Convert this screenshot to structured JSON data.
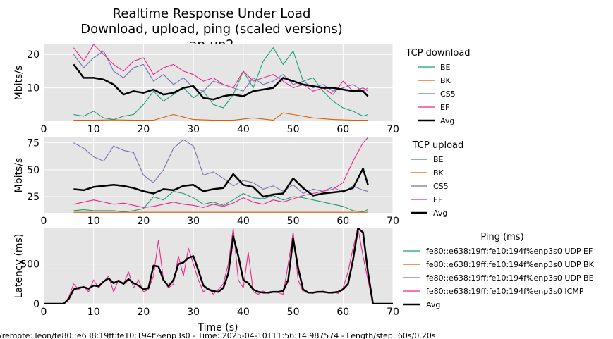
{
  "title_lines": [
    "Realtime Response Under Load",
    "Download, upload, ping (scaled versions)",
    "ap-up2"
  ],
  "footer": "l/remote: leon/fe80::e638:19ff:fe10:194f%enp3s0 - Time: 2025-04-10T11:56:14.987574 - Length/step: 60s/0.20s",
  "colors": {
    "BE": "#1b9e77",
    "BK": "#d95f02",
    "CS5": "#7570b3",
    "EF": "#e7298a",
    "Avg": "#000000",
    "panel_bg": "#e5e5e5",
    "grid": "#ffffff"
  },
  "chart_data": [
    {
      "type": "line",
      "ylabel": "Mbits/s",
      "xlim": [
        0,
        70
      ],
      "ylim": [
        0,
        23
      ],
      "xticks": [
        "0",
        "10",
        "20",
        "30",
        "40",
        "50",
        "60",
        "70"
      ],
      "yticks": [
        "10",
        "20"
      ],
      "legend_title": "TCP download",
      "legend": [
        "BE",
        "BK",
        "CS5",
        "EF",
        "Avg"
      ],
      "series": [
        {
          "name": "BE",
          "x": [
            6,
            8,
            10,
            12,
            14,
            16,
            18,
            20,
            22,
            24,
            26,
            28,
            30,
            32,
            34,
            36,
            38,
            40,
            42,
            44,
            46,
            48,
            50,
            52,
            54,
            56,
            58,
            60,
            62,
            64,
            65
          ],
          "y": [
            2,
            1.5,
            3,
            1,
            0.5,
            1.5,
            2,
            5,
            9,
            6,
            8,
            10,
            7,
            9,
            5,
            4,
            8,
            15,
            10,
            18,
            22,
            17,
            21,
            12,
            13,
            9,
            6,
            4,
            3,
            1.5,
            2
          ]
        },
        {
          "name": "BK",
          "x": [
            6,
            10,
            14,
            18,
            22,
            26,
            30,
            34,
            38,
            42,
            46,
            48,
            50,
            54,
            58,
            62,
            65
          ],
          "y": [
            0.3,
            0.3,
            0.4,
            0.3,
            0.3,
            2,
            0.5,
            0.3,
            0.3,
            1,
            0.3,
            2.5,
            2,
            1,
            0.5,
            0.3,
            0.3
          ]
        },
        {
          "name": "CS5",
          "x": [
            6,
            8,
            10,
            12,
            14,
            16,
            18,
            20,
            22,
            24,
            26,
            28,
            30,
            32,
            34,
            36,
            38,
            40,
            42,
            44,
            46,
            48,
            50,
            52,
            54,
            56,
            58,
            60,
            62,
            64,
            65
          ],
          "y": [
            20,
            16,
            19,
            21,
            15,
            13,
            16,
            17,
            12,
            14,
            11,
            13,
            10,
            9,
            12,
            11,
            10,
            9,
            13,
            11,
            12,
            14,
            11,
            12,
            10,
            11,
            9,
            10,
            11,
            9,
            10
          ]
        },
        {
          "name": "EF",
          "x": [
            6,
            8,
            10,
            12,
            14,
            16,
            18,
            20,
            22,
            24,
            26,
            28,
            30,
            32,
            34,
            36,
            38,
            40,
            42,
            44,
            46,
            48,
            50,
            52,
            54,
            56,
            58,
            60,
            62,
            64,
            65
          ],
          "y": [
            22,
            18,
            23,
            20,
            17,
            15,
            18,
            19,
            14,
            16,
            17,
            15,
            14,
            12,
            13,
            11,
            10,
            15,
            12,
            13,
            14,
            12,
            10,
            11,
            9,
            10,
            8,
            12,
            9,
            10,
            9
          ]
        },
        {
          "name": "Avg",
          "x": [
            6,
            8,
            10,
            12,
            14,
            16,
            18,
            20,
            22,
            24,
            26,
            28,
            30,
            32,
            34,
            36,
            38,
            40,
            42,
            44,
            46,
            48,
            50,
            52,
            54,
            56,
            58,
            60,
            62,
            64,
            65
          ],
          "y": [
            17,
            13,
            13,
            12.5,
            11,
            8,
            9,
            8.5,
            9.5,
            8,
            8.5,
            10,
            10.5,
            7,
            6.5,
            7.5,
            8,
            7.5,
            9,
            9.5,
            10,
            13,
            12,
            11,
            10.5,
            10,
            10,
            9.5,
            9,
            9,
            7.5
          ]
        }
      ]
    },
    {
      "type": "line",
      "ylabel": "Mbits/s",
      "xlim": [
        0,
        70
      ],
      "ylim": [
        10,
        80
      ],
      "xticks": [
        "0",
        "10",
        "20",
        "30",
        "40",
        "50",
        "60",
        "70"
      ],
      "yticks": [
        "25",
        "50",
        "75"
      ],
      "legend_title": "TCP upload",
      "legend": [
        "BE",
        "BK",
        "CS5",
        "EF",
        "Avg"
      ],
      "series": [
        {
          "name": "BE",
          "x": [
            6,
            8,
            10,
            12,
            14,
            16,
            18,
            20,
            22,
            24,
            26,
            28,
            30,
            32,
            34,
            36,
            38,
            40,
            42,
            44,
            46,
            48,
            50,
            52,
            54,
            56,
            58,
            60,
            62,
            64,
            65
          ],
          "y": [
            12,
            13,
            12,
            12,
            12,
            11,
            12,
            14,
            25,
            22,
            30,
            28,
            24,
            18,
            20,
            17,
            22,
            28,
            24,
            23,
            26,
            22,
            25,
            24,
            22,
            20,
            18,
            16,
            12,
            11,
            13
          ]
        },
        {
          "name": "BK",
          "x": [
            6,
            10,
            14,
            18,
            22,
            26,
            30,
            34,
            38,
            42,
            46,
            50,
            54,
            58,
            62,
            65
          ],
          "y": [
            10.5,
            10.5,
            10.5,
            10.5,
            10.5,
            10.5,
            10.5,
            10.5,
            10.5,
            10.5,
            10.5,
            10.5,
            10.5,
            10.5,
            10.5,
            10.5
          ]
        },
        {
          "name": "CS5",
          "x": [
            6,
            8,
            10,
            12,
            14,
            16,
            18,
            20,
            22,
            24,
            26,
            28,
            30,
            32,
            34,
            36,
            38,
            40,
            42,
            44,
            46,
            48,
            50,
            52,
            54,
            56,
            58,
            60,
            62,
            64,
            65
          ],
          "y": [
            75,
            70,
            62,
            58,
            72,
            68,
            66,
            45,
            38,
            50,
            70,
            78,
            72,
            45,
            48,
            42,
            35,
            40,
            38,
            32,
            35,
            30,
            36,
            28,
            32,
            30,
            34,
            29,
            35,
            31,
            30
          ]
        },
        {
          "name": "EF",
          "x": [
            6,
            8,
            10,
            12,
            14,
            16,
            18,
            20,
            22,
            24,
            26,
            28,
            30,
            32,
            34,
            36,
            38,
            40,
            42,
            44,
            46,
            48,
            50,
            52,
            54,
            56,
            58,
            60,
            62,
            64,
            65
          ],
          "y": [
            18,
            20,
            22,
            20,
            18,
            19,
            17,
            15,
            16,
            18,
            20,
            18,
            17,
            15,
            18,
            16,
            19,
            24,
            20,
            18,
            22,
            20,
            23,
            26,
            28,
            30,
            32,
            38,
            58,
            75,
            80
          ]
        },
        {
          "name": "Avg",
          "x": [
            6,
            8,
            10,
            12,
            14,
            16,
            18,
            20,
            22,
            24,
            26,
            28,
            30,
            32,
            34,
            36,
            38,
            40,
            42,
            44,
            46,
            48,
            50,
            52,
            54,
            56,
            58,
            60,
            62,
            64,
            65
          ],
          "y": [
            32,
            31,
            34,
            35,
            36,
            35,
            33,
            30,
            28,
            32,
            31,
            35,
            36,
            30,
            32,
            33,
            46,
            36,
            34,
            25,
            27,
            28,
            42,
            33,
            26,
            28,
            29,
            30,
            33,
            51,
            36
          ]
        }
      ]
    },
    {
      "type": "line",
      "xlabel": "Time (s)",
      "ylabel": "Latency (ms)",
      "xlim": [
        0,
        70
      ],
      "ylim": [
        0,
        950
      ],
      "xticks": [
        "0",
        "10",
        "20",
        "30",
        "40",
        "50",
        "60",
        "70"
      ],
      "yticks": [
        "0",
        "500"
      ],
      "legend_title": "Ping (ms)",
      "legend": [
        "fe80::e638:19ff:fe10:194f%enp3s0 UDP EF",
        "fe80::e638:19ff:fe10:194f%enp3s0 UDP BK",
        "fe80::e638:19ff:fe10:194f%enp3s0 UDP BE",
        "fe80::e638:19ff:fe10:194f%enp3s0 ICMP",
        "Avg"
      ],
      "series": [
        {
          "name": "ICMP",
          "x": [
            0,
            4,
            5,
            6,
            7,
            8,
            9,
            10,
            11,
            12,
            13,
            14,
            15,
            16,
            17,
            18,
            19,
            20,
            21,
            22,
            23,
            24,
            25,
            26,
            27,
            28,
            29,
            30,
            31,
            32,
            33,
            34,
            35,
            36,
            37,
            38,
            39,
            40,
            41,
            42,
            43,
            44,
            45,
            46,
            47,
            48,
            49,
            50,
            51,
            52,
            53,
            54,
            55,
            56,
            57,
            58,
            59,
            60,
            61,
            62,
            63,
            64,
            65,
            66,
            67,
            70
          ],
          "y": [
            0,
            0,
            80,
            250,
            180,
            220,
            150,
            300,
            200,
            280,
            350,
            150,
            300,
            250,
            400,
            200,
            300,
            150,
            180,
            350,
            800,
            300,
            200,
            250,
            600,
            350,
            700,
            500,
            300,
            150,
            200,
            120,
            180,
            250,
            500,
            950,
            300,
            200,
            650,
            150,
            120,
            160,
            130,
            150,
            140,
            120,
            500,
            900,
            300,
            150,
            140,
            130,
            150,
            160,
            140,
            150,
            130,
            200,
            400,
            700,
            950,
            600,
            300,
            0,
            0,
            0
          ]
        },
        {
          "name": "Avg",
          "x": [
            0,
            4,
            5,
            6,
            7,
            8,
            9,
            10,
            11,
            12,
            13,
            14,
            15,
            16,
            17,
            18,
            19,
            20,
            21,
            22,
            23,
            24,
            25,
            26,
            27,
            28,
            29,
            30,
            31,
            32,
            33,
            34,
            35,
            36,
            37,
            38,
            39,
            40,
            41,
            42,
            43,
            44,
            45,
            46,
            47,
            48,
            49,
            50,
            51,
            52,
            53,
            54,
            55,
            56,
            57,
            58,
            59,
            60,
            61,
            62,
            63,
            64,
            65,
            66,
            67,
            70
          ],
          "y": [
            0,
            0,
            60,
            180,
            200,
            210,
            190,
            230,
            220,
            280,
            320,
            260,
            290,
            250,
            310,
            260,
            230,
            180,
            200,
            480,
            470,
            300,
            220,
            300,
            500,
            520,
            580,
            600,
            420,
            230,
            180,
            160,
            150,
            200,
            380,
            850,
            600,
            300,
            260,
            180,
            150,
            140,
            140,
            150,
            150,
            160,
            300,
            820,
            450,
            180,
            140,
            140,
            150,
            150,
            140,
            140,
            150,
            180,
            250,
            550,
            950,
            900,
            400,
            0,
            0,
            0
          ]
        }
      ]
    }
  ]
}
